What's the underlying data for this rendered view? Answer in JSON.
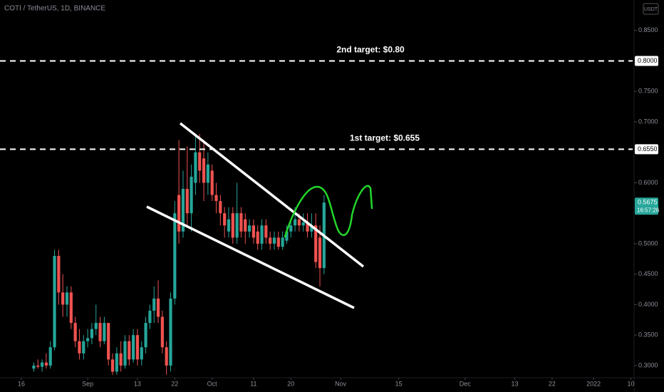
{
  "chart_data": {
    "type": "candlestick",
    "title": "COTI / TetherUS, 1D, BINANCE",
    "currency": "USDT",
    "x": [
      3,
      4,
      5,
      6,
      7,
      8,
      9,
      10,
      11,
      12,
      13,
      14,
      15,
      16,
      17,
      18,
      19,
      20,
      21,
      22,
      23,
      24,
      25,
      26,
      27,
      28,
      29,
      30,
      31,
      32,
      33,
      34,
      35,
      36,
      37,
      38,
      39,
      40,
      41,
      42,
      43,
      44,
      45,
      46,
      47,
      48,
      49,
      50,
      51,
      52,
      53,
      54,
      55,
      56,
      57,
      58,
      59,
      60,
      61,
      62,
      63,
      64,
      65,
      66,
      67,
      68,
      69,
      70,
      71,
      72,
      73
    ],
    "open": [
      0.295,
      0.3,
      0.298,
      0.305,
      0.3,
      0.33,
      0.48,
      0.42,
      0.4,
      0.42,
      0.37,
      0.34,
      0.32,
      0.34,
      0.345,
      0.36,
      0.37,
      0.34,
      0.37,
      0.31,
      0.29,
      0.32,
      0.3,
      0.34,
      0.31,
      0.35,
      0.31,
      0.33,
      0.37,
      0.39,
      0.41,
      0.38,
      0.33,
      0.3,
      0.41,
      0.58,
      0.52,
      0.59,
      0.55,
      0.6,
      0.65,
      0.64,
      0.6,
      0.62,
      0.58,
      0.57,
      0.55,
      0.52,
      0.55,
      0.51,
      0.55,
      0.54,
      0.52,
      0.53,
      0.52,
      0.5,
      0.53,
      0.51,
      0.5,
      0.51,
      0.495,
      0.505,
      0.52,
      0.53,
      0.54,
      0.53,
      0.535,
      0.52,
      0.53,
      0.51,
      0.46
    ],
    "high": [
      0.305,
      0.31,
      0.31,
      0.32,
      0.34,
      0.49,
      0.49,
      0.45,
      0.43,
      0.43,
      0.38,
      0.36,
      0.35,
      0.36,
      0.37,
      0.4,
      0.38,
      0.38,
      0.37,
      0.32,
      0.33,
      0.34,
      0.35,
      0.35,
      0.36,
      0.36,
      0.34,
      0.38,
      0.4,
      0.43,
      0.44,
      0.39,
      0.34,
      0.42,
      0.57,
      0.67,
      0.62,
      0.66,
      0.63,
      0.68,
      0.68,
      0.67,
      0.65,
      0.63,
      0.6,
      0.58,
      0.56,
      0.56,
      0.56,
      0.6,
      0.56,
      0.55,
      0.54,
      0.54,
      0.53,
      0.54,
      0.54,
      0.52,
      0.52,
      0.52,
      0.52,
      0.53,
      0.54,
      0.56,
      0.55,
      0.55,
      0.55,
      0.55,
      0.55,
      0.53,
      0.58
    ],
    "low": [
      0.29,
      0.295,
      0.29,
      0.295,
      0.295,
      0.325,
      0.4,
      0.38,
      0.38,
      0.36,
      0.33,
      0.31,
      0.31,
      0.33,
      0.335,
      0.35,
      0.33,
      0.335,
      0.3,
      0.285,
      0.285,
      0.29,
      0.295,
      0.3,
      0.305,
      0.3,
      0.3,
      0.32,
      0.36,
      0.37,
      0.37,
      0.32,
      0.285,
      0.29,
      0.4,
      0.5,
      0.51,
      0.53,
      0.52,
      0.58,
      0.6,
      0.57,
      0.58,
      0.57,
      0.55,
      0.53,
      0.51,
      0.51,
      0.5,
      0.5,
      0.51,
      0.5,
      0.51,
      0.5,
      0.49,
      0.49,
      0.5,
      0.49,
      0.49,
      0.49,
      0.49,
      0.5,
      0.51,
      0.52,
      0.52,
      0.52,
      0.51,
      0.51,
      0.46,
      0.43,
      0.45
    ],
    "close": [
      0.3,
      0.298,
      0.305,
      0.3,
      0.33,
      0.48,
      0.42,
      0.4,
      0.42,
      0.37,
      0.34,
      0.32,
      0.34,
      0.345,
      0.36,
      0.37,
      0.34,
      0.37,
      0.31,
      0.29,
      0.32,
      0.3,
      0.34,
      0.31,
      0.35,
      0.31,
      0.33,
      0.37,
      0.39,
      0.41,
      0.38,
      0.33,
      0.3,
      0.41,
      0.55,
      0.52,
      0.59,
      0.55,
      0.61,
      0.65,
      0.62,
      0.6,
      0.63,
      0.58,
      0.57,
      0.55,
      0.53,
      0.54,
      0.51,
      0.55,
      0.52,
      0.52,
      0.53,
      0.51,
      0.5,
      0.53,
      0.51,
      0.5,
      0.51,
      0.495,
      0.51,
      0.52,
      0.53,
      0.54,
      0.53,
      0.535,
      0.52,
      0.53,
      0.47,
      0.46,
      0.5675
    ],
    "up_color": "#26a69a",
    "down_color": "#ef5350",
    "xlim": [
      -5.15,
      147.77
    ],
    "ylim": [
      0.28,
      0.9
    ],
    "xticks": [
      {
        "value": 0,
        "label": "16"
      },
      {
        "value": 16,
        "label": "Sep"
      },
      {
        "value": 28,
        "label": "13"
      },
      {
        "value": 37,
        "label": "22"
      },
      {
        "value": 46,
        "label": "Oct"
      },
      {
        "value": 56,
        "label": "11"
      },
      {
        "value": 65,
        "label": "20"
      },
      {
        "value": 77,
        "label": "Nov"
      },
      {
        "value": 91,
        "label": "15"
      },
      {
        "value": 107,
        "label": "Dec"
      },
      {
        "value": 119,
        "label": "13"
      },
      {
        "value": 128,
        "label": "22"
      },
      {
        "value": 138,
        "label": "2022"
      },
      {
        "value": 147,
        "label": "10"
      }
    ],
    "yticks": [
      {
        "value": 0.85,
        "label": "0.8500"
      },
      {
        "value": 0.75,
        "label": "0.7500"
      },
      {
        "value": 0.7,
        "label": "0.7000"
      },
      {
        "value": 0.6,
        "label": "0.6000"
      },
      {
        "value": 0.5,
        "label": "0.5000"
      },
      {
        "value": 0.45,
        "label": "0.4500"
      },
      {
        "value": 0.4,
        "label": "0.4000"
      },
      {
        "value": 0.35,
        "label": "0.3500"
      },
      {
        "value": 0.3,
        "label": "0.3000"
      }
    ],
    "last_price": {
      "value": 0.5675,
      "label": "0.5675"
    },
    "countdown": "16:57:26",
    "targets": [
      {
        "text": "2nd target: $0.80",
        "value": 0.8,
        "label": "0.8000"
      },
      {
        "text": "1st target: $0.655",
        "value": 0.655,
        "label": "0.6550"
      }
    ]
  }
}
